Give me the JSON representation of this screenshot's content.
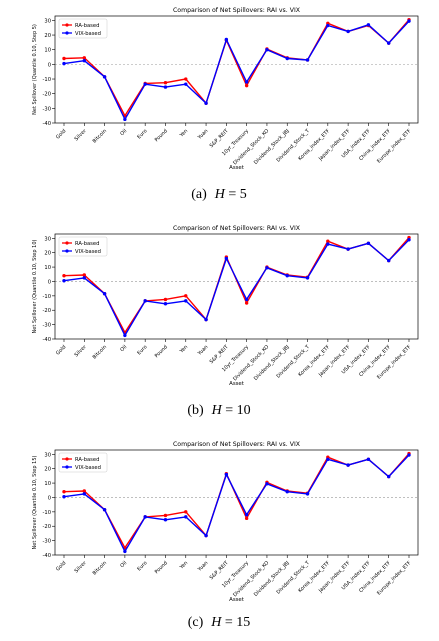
{
  "chart_data": [
    {
      "type": "line",
      "title": "Comparison of Net Spillovers: RAI vs. VIX",
      "xlabel": "Asset",
      "ylabel": "Net Spillover (Quantile 0.10, Step 5)",
      "ylim": [
        -40,
        33
      ],
      "yticks": [
        30,
        20,
        10,
        0,
        -10,
        -20,
        -30,
        -40
      ],
      "grid": false,
      "legend": "top-left",
      "zero_line": true,
      "categories": [
        "Gold",
        "Silver",
        "Bitcoin",
        "Oil",
        "Euro",
        "Pound",
        "Yen",
        "Yuan",
        "S&P_REIT",
        "10yr_Treasury",
        "Dividend_Stock_KO",
        "Dividend_Stock_JBJ",
        "Dividend_Stock_T",
        "Korea_index_ETF",
        "Japan_index_ETF",
        "USA_index_ETF",
        "China_index_ETF",
        "Europe_index_ETF"
      ],
      "series": [
        {
          "name": "RA-based",
          "color": "#ff0000",
          "values": [
            4,
            4.5,
            -8.5,
            -35,
            -13,
            -12.5,
            -10,
            -26.5,
            16.5,
            -14.5,
            10.5,
            4.5,
            3,
            28,
            22.5,
            26.5,
            14.5,
            30.5
          ]
        },
        {
          "name": "VIX-based",
          "color": "#0000ff",
          "values": [
            0.5,
            2.5,
            -8.5,
            -37.5,
            -13.5,
            -15.5,
            -13.5,
            -26.5,
            17,
            -12,
            10,
            4,
            3,
            26.5,
            22.5,
            27,
            14.5,
            29.5
          ]
        }
      ],
      "caption_label": "(a)",
      "caption_h": "H",
      "caption_value": " = 5"
    },
    {
      "type": "line",
      "title": "Comparison of Net Spillovers: RAI vs. VIX",
      "xlabel": "Asset",
      "ylabel": "Net Spillover (Quantile 0.10, Step 10)",
      "ylim": [
        -40,
        33
      ],
      "yticks": [
        30,
        20,
        10,
        0,
        -10,
        -20,
        -30,
        -40
      ],
      "grid": false,
      "legend": "top-left",
      "zero_line": true,
      "categories": [
        "Gold",
        "Silver",
        "Bitcoin",
        "Oil",
        "Euro",
        "Pound",
        "Yen",
        "Yuan",
        "S&P_REIT",
        "10yr_Treasury",
        "Dividend_Stock_KO",
        "Dividend_Stock_JBJ",
        "Dividend_Stock_T",
        "Korea_index_ETF",
        "Japan_index_ETF",
        "USA_index_ETF",
        "China_index_ETF",
        "Europe_index_ETF"
      ],
      "series": [
        {
          "name": "RA-based",
          "color": "#ff0000",
          "values": [
            4,
            4.5,
            -8.5,
            -35.5,
            -13.5,
            -12.5,
            -10,
            -26.5,
            17,
            -15,
            10,
            4.5,
            3,
            28,
            22.5,
            26.5,
            14.5,
            30.5
          ]
        },
        {
          "name": "VIX-based",
          "color": "#0000ff",
          "values": [
            0.5,
            2.5,
            -8.5,
            -37.5,
            -13.5,
            -15.5,
            -13.5,
            -26.5,
            16,
            -12.5,
            9.5,
            4,
            2.5,
            26,
            22.5,
            26.5,
            14.5,
            29
          ]
        }
      ],
      "caption_label": "(b)",
      "caption_h": "H",
      "caption_value": " = 10"
    },
    {
      "type": "line",
      "title": "Comparison of Net Spillovers: RAI vs. VIX",
      "xlabel": "Asset",
      "ylabel": "Net Spillover (Quantile 0.10, Step 15)",
      "ylim": [
        -40,
        33
      ],
      "yticks": [
        30,
        20,
        10,
        0,
        -10,
        -20,
        -30,
        -40
      ],
      "grid": false,
      "legend": "top-left",
      "zero_line": true,
      "categories": [
        "Gold",
        "Silver",
        "Bitcoin",
        "Oil",
        "Euro",
        "Pound",
        "Yen",
        "Yuan",
        "S&P_REIT",
        "10yr_Treasury",
        "Dividend_Stock_KO",
        "Dividend_Stock_JBJ",
        "Dividend_Stock_T",
        "Korea_index_ETF",
        "Japan_index_ETF",
        "USA_index_ETF",
        "China_index_ETF",
        "Europe_index_ETF"
      ],
      "series": [
        {
          "name": "RA-based",
          "color": "#ff0000",
          "values": [
            4,
            4.5,
            -8.5,
            -35,
            -13.5,
            -12.5,
            -10,
            -26.5,
            16.5,
            -14.5,
            10.5,
            4.5,
            3,
            28,
            22.5,
            26.5,
            14.5,
            30.5
          ]
        },
        {
          "name": "VIX-based",
          "color": "#0000ff",
          "values": [
            0.5,
            2.5,
            -8.5,
            -37.5,
            -13.5,
            -15.5,
            -13.5,
            -26.5,
            16,
            -12,
            9.5,
            4,
            2.5,
            26.5,
            22.5,
            26.5,
            14.5,
            29.5
          ]
        }
      ],
      "caption_label": "(c)",
      "caption_h": "H",
      "caption_value": " = 15"
    }
  ]
}
